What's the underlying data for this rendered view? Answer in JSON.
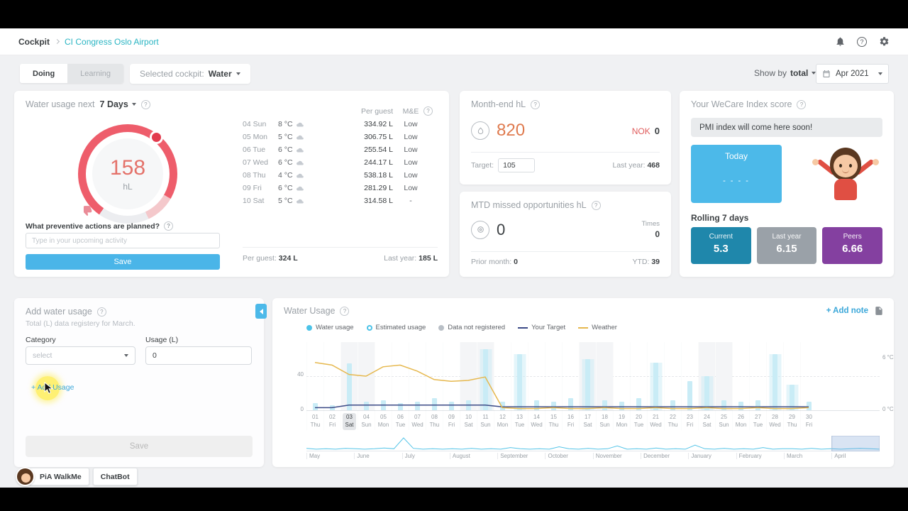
{
  "header": {
    "breadcrumb_root": "Cockpit",
    "breadcrumb_current": "CI Congress Oslo Airport"
  },
  "toolbar": {
    "tab_doing": "Doing",
    "tab_learning": "Learning",
    "selected_cockpit_label": "Selected cockpit:",
    "selected_cockpit_value": "Water",
    "show_by_label": "Show by",
    "show_by_value": "total",
    "date_value": "Apr 2021"
  },
  "forecast_card": {
    "title": "Water usage next",
    "range_value": "7 Days",
    "gauge_value": "158",
    "gauge_unit": "hL",
    "question": "What preventive actions are planned?",
    "input_placeholder": "Type in your upcoming activity",
    "save_label": "Save",
    "col_per_guest": "Per guest",
    "col_me": "M&E",
    "rows": [
      {
        "date": "04 Sun",
        "temp": "8 °C",
        "per_guest": "334.92 L",
        "me": "Low"
      },
      {
        "date": "05 Mon",
        "temp": "5 °C",
        "per_guest": "306.75 L",
        "me": "Low"
      },
      {
        "date": "06 Tue",
        "temp": "6 °C",
        "per_guest": "255.54 L",
        "me": "Low"
      },
      {
        "date": "07 Wed",
        "temp": "6 °C",
        "per_guest": "244.17 L",
        "me": "Low"
      },
      {
        "date": "08 Thu",
        "temp": "4 °C",
        "per_guest": "538.18 L",
        "me": "Low"
      },
      {
        "date": "09 Fri",
        "temp": "6 °C",
        "per_guest": "281.29 L",
        "me": "Low"
      },
      {
        "date": "10 Sat",
        "temp": "5 °C",
        "per_guest": "314.58 L",
        "me": "-"
      }
    ],
    "footer_per_guest_label": "Per guest:",
    "footer_per_guest_value": "324 L",
    "footer_last_year_label": "Last year:",
    "footer_last_year_value": "185 L"
  },
  "month_end_card": {
    "title": "Month-end hL",
    "value": "820",
    "currency": "NOK",
    "currency_value": "0",
    "target_label": "Target:",
    "target_value": "105",
    "last_year_label": "Last year:",
    "last_year_value": "468"
  },
  "mtd_card": {
    "title": "MTD missed opportunities hL",
    "value": "0",
    "times_label": "Times",
    "times_value": "0",
    "prior_month_label": "Prior month:",
    "prior_month_value": "0",
    "ytd_label": "YTD:",
    "ytd_value": "39"
  },
  "wecare_card": {
    "title": "Your WeCare Index score",
    "banner": "PMI index will come here soon!",
    "today_label": "Today",
    "today_value": "- - - -",
    "rolling_label": "Rolling 7 days",
    "scores": [
      {
        "label": "Current",
        "value": "5.3",
        "color": "#1f87ab"
      },
      {
        "label": "Last year",
        "value": "6.15",
        "color": "#9aa1a8"
      },
      {
        "label": "Peers",
        "value": "6.66",
        "color": "#8440a0"
      }
    ]
  },
  "add_usage_card": {
    "title": "Add water usage",
    "subtitle": "Total (L) data registery for March.",
    "category_label": "Category",
    "category_value": "select",
    "usage_label": "Usage (L)",
    "usage_value": "0",
    "add_usage_label": "+ Add Usage",
    "save_label": "Save"
  },
  "chart_card": {
    "title": "Water Usage",
    "add_note_label": "+ Add note",
    "legend": [
      "Water usage",
      "Estimated usage",
      "Data not registered",
      "Your Target",
      "Weather"
    ],
    "axis_left_top": "40",
    "axis_left_bottom": "0",
    "axis_right_top": "6 °C",
    "axis_right_bottom": "0 °C"
  },
  "chart_data": {
    "type": "bar",
    "title": "Water Usage",
    "x_days": [
      "01 Thu",
      "02 Fri",
      "03 Sat",
      "04 Sun",
      "05 Mon",
      "06 Tue",
      "07 Wed",
      "08 Thu",
      "09 Fri",
      "10 Sat",
      "11 Sun",
      "12 Mon",
      "13 Tue",
      "14 Wed",
      "15 Thu",
      "16 Fri",
      "17 Sat",
      "18 Sun",
      "19 Mon",
      "20 Tue",
      "21 Wed",
      "22 Thu",
      "23 Fri",
      "24 Sat",
      "25 Sun",
      "26 Mon",
      "27 Tue",
      "28 Wed",
      "29 Thu",
      "30 Fri"
    ],
    "highlight_index": 2,
    "ylim_left": [
      0,
      80
    ],
    "ylim_right": [
      0,
      8
    ],
    "estimated_days": [
      10,
      12,
      16,
      20,
      23,
      27,
      28
    ],
    "series": [
      {
        "name": "Water usage",
        "type": "bar",
        "color": "#c9ecf6",
        "values": [
          8,
          6,
          55,
          10,
          12,
          8,
          10,
          14,
          10,
          12,
          72,
          10,
          66,
          12,
          10,
          14,
          60,
          12,
          10,
          14,
          56,
          12,
          34,
          40,
          12,
          10,
          12,
          66,
          30,
          10
        ]
      },
      {
        "name": "Your Target",
        "type": "line",
        "axis": "left",
        "color": "#3b4a86",
        "values": [
          3,
          3,
          6,
          6,
          6,
          6,
          6,
          6,
          6,
          6,
          6,
          4,
          4,
          4,
          4,
          4,
          4,
          4,
          4,
          4,
          4,
          4,
          4,
          4,
          4,
          4,
          4,
          4,
          4,
          4
        ]
      },
      {
        "name": "Weather",
        "type": "line",
        "axis": "right",
        "color": "#e6b84e",
        "values": [
          5.6,
          5.3,
          4.2,
          4.0,
          5.1,
          5.3,
          4.6,
          3.6,
          3.4,
          3.5,
          3.9,
          0.3,
          0.2,
          0.2,
          0.3,
          0.2,
          0.2,
          0.3,
          0.2,
          0.2,
          0.3,
          0.2,
          0.2,
          0.3,
          0.2,
          0.2,
          0.3,
          0.2,
          0.2,
          0.3
        ]
      }
    ],
    "overview": {
      "months": [
        "May",
        "June",
        "July",
        "August",
        "September",
        "October",
        "November",
        "December",
        "January",
        "February",
        "March",
        "April"
      ],
      "selected_month": "April",
      "line_color": "#55c5e8",
      "values": [
        4,
        2,
        3,
        2,
        4,
        3,
        2,
        3,
        5,
        3,
        30,
        4,
        2,
        3,
        2,
        3,
        2,
        4,
        2,
        3,
        2,
        6,
        3,
        2,
        3,
        2,
        8,
        3,
        2,
        4,
        2,
        3,
        10,
        2,
        3,
        2,
        5,
        2,
        3,
        2,
        12,
        3,
        2,
        4,
        2,
        3,
        2,
        6,
        2,
        3,
        3,
        2,
        4,
        2,
        3,
        2,
        3,
        4,
        3,
        2
      ]
    }
  },
  "floating": {
    "pia_label": "PiA WalkMe",
    "chatbot_label": "ChatBot"
  }
}
